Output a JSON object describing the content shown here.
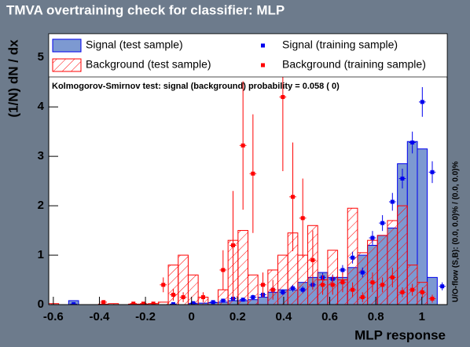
{
  "chart_data": {
    "type": "histogram",
    "title": "TMVA overtraining check for classifier: MLP",
    "x_label": "MLP response",
    "y_label": "(1/N) dN / dx",
    "annotation": "Kolmogorov-Smirnov test: signal (background) probability = 0.058 (    0)",
    "side_note": "U/O-flow (S,B): (0.0, 0.0)% / (0.0, 0.0)%",
    "xlim": [
      -0.62,
      1.11
    ],
    "ylim": [
      0,
      5.48
    ],
    "xticks": [
      -0.6,
      -0.4,
      -0.2,
      0,
      0.2,
      0.4,
      0.6,
      0.8,
      1
    ],
    "yticks": [
      0,
      1,
      2,
      3,
      4,
      5
    ],
    "bins": [
      -0.62,
      -0.5768,
      -0.5335,
      -0.4903,
      -0.447,
      -0.4038,
      -0.3605,
      -0.3173,
      -0.274,
      -0.2308,
      -0.1875,
      -0.1443,
      -0.101,
      -0.0578,
      -0.0145,
      0.0288,
      0.072,
      0.1153,
      0.1585,
      0.2018,
      0.245,
      0.2883,
      0.3315,
      0.3748,
      0.418,
      0.4613,
      0.5045,
      0.5478,
      0.591,
      0.6343,
      0.6775,
      0.7208,
      0.764,
      0.8073,
      0.8505,
      0.8938,
      0.937,
      0.9803,
      1.0235,
      1.0668,
      1.11
    ],
    "series": [
      {
        "name": "Signal (test sample)",
        "style": "filled",
        "color": "#7d99d1",
        "line_color": "#0000ee",
        "values": [
          0,
          0,
          0.08,
          0,
          0,
          0,
          0,
          0,
          0,
          0,
          0,
          0,
          0,
          0,
          0.02,
          0.03,
          0.04,
          0.05,
          0.08,
          0.08,
          0.1,
          0.15,
          0.25,
          0.3,
          0.3,
          0.45,
          0.55,
          0.65,
          0.55,
          0.55,
          0.75,
          1.0,
          1.2,
          1.4,
          1.55,
          2.85,
          3.3,
          3.15,
          0.55,
          0
        ]
      },
      {
        "name": "Background (test sample)",
        "style": "hatched",
        "color": "#ff0000",
        "values": [
          0.02,
          0,
          0,
          0,
          0,
          0.01,
          0.02,
          0,
          0.01,
          0.01,
          0.02,
          0.05,
          0.8,
          1.0,
          0.6,
          0.15,
          0,
          0.3,
          1.3,
          1.5,
          0.6,
          0,
          0.7,
          1.0,
          1.45,
          1.0,
          1.6,
          0.5,
          1.1,
          0.5,
          1.95,
          1.05,
          1.3,
          1.4,
          1.7,
          2.0,
          0.8,
          0.45,
          0,
          0
        ]
      },
      {
        "name": "Signal (training sample)",
        "style": "points",
        "color": "#0000ee",
        "values": [
          null,
          null,
          0.01,
          null,
          null,
          null,
          null,
          null,
          null,
          null,
          null,
          null,
          0.01,
          null,
          0.03,
          null,
          0.05,
          0.08,
          0.12,
          0.1,
          0.15,
          0.2,
          0.3,
          0.25,
          0.33,
          0.3,
          0.4,
          0.55,
          0.52,
          0.7,
          0.95,
          0.65,
          1.35,
          1.65,
          2.08,
          2.55,
          3.28,
          4.1,
          2.68,
          0.37
        ],
        "errors": [
          null,
          null,
          0.01,
          null,
          null,
          null,
          null,
          null,
          null,
          null,
          null,
          null,
          0.01,
          null,
          0.02,
          null,
          0.03,
          0.03,
          0.04,
          0.04,
          0.05,
          0.05,
          0.06,
          0.06,
          0.07,
          0.07,
          0.08,
          0.09,
          0.09,
          0.1,
          0.12,
          0.1,
          0.14,
          0.16,
          0.18,
          0.2,
          0.22,
          0.3,
          0.22,
          0.08
        ]
      },
      {
        "name": "Background (training sample)",
        "style": "points",
        "color": "#ff0000",
        "values": [
          null,
          null,
          null,
          null,
          null,
          0.05,
          null,
          null,
          0.02,
          0.02,
          0.02,
          0.4,
          0.2,
          0.15,
          null,
          0.15,
          null,
          0.7,
          1.2,
          3.22,
          2.65,
          0.4,
          0.3,
          4.2,
          2.18,
          1.75,
          0.9,
          0.4,
          0.4,
          0.45,
          0.3,
          0.15,
          0.45,
          0.4,
          0.55,
          0.25,
          0.3,
          0.25,
          0.12,
          null
        ],
        "errors": [
          null,
          null,
          null,
          null,
          null,
          0.04,
          null,
          null,
          0.02,
          0.02,
          0.02,
          0.15,
          0.12,
          0.1,
          null,
          0.1,
          null,
          0.4,
          1.1,
          1.3,
          1.2,
          0.25,
          0.2,
          1.5,
          1.1,
          0.8,
          0.6,
          0.2,
          0.2,
          0.2,
          0.15,
          0.1,
          0.2,
          0.15,
          0.2,
          0.1,
          0.12,
          0.1,
          0.08,
          null
        ]
      }
    ]
  }
}
